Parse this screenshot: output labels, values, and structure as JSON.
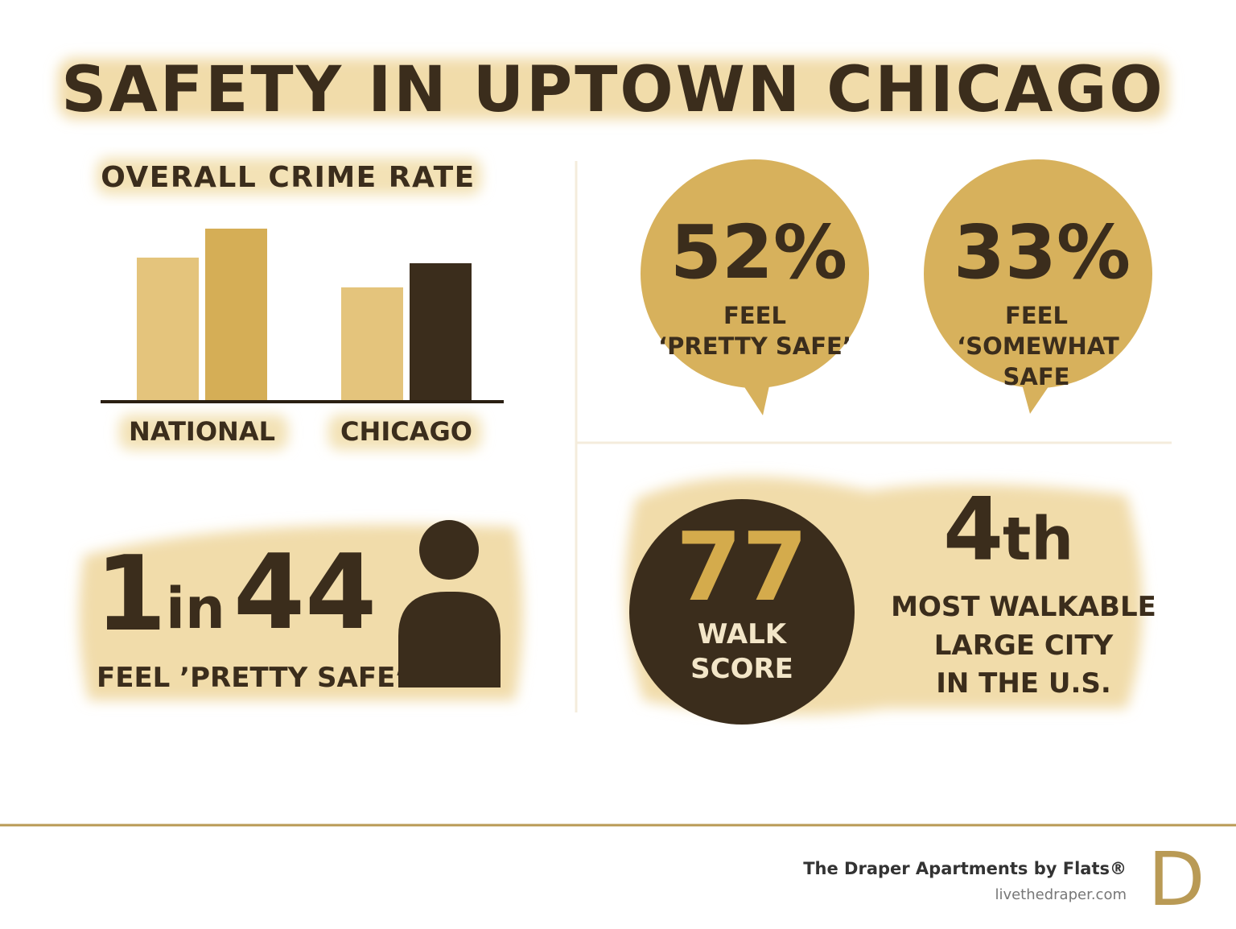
{
  "title": "SAFETY IN UPTOWN CHICAGO",
  "chart_data": {
    "type": "bar",
    "title": "OVERALL CRIME RATE",
    "categories": [
      "NATIONAL",
      "CHICAGO"
    ],
    "series": [
      {
        "colors": [
          "#e4c47c",
          "#e4c47c"
        ],
        "values": [
          177,
          140
        ]
      },
      {
        "colors": [
          "#d5ae56",
          "#3b2d1c"
        ],
        "values": [
          213,
          170
        ]
      }
    ],
    "ylim": [
      0,
      230
    ]
  },
  "bubbles": [
    {
      "value": "52%",
      "label_lines": [
        "FEEL",
        "‘PRETTY SAFE’"
      ]
    },
    {
      "value": "33%",
      "label_lines": [
        "FEEL",
        "‘SOMEWHAT",
        "SAFE"
      ]
    }
  ],
  "ratio": {
    "first": "1",
    "middle": "in",
    "second": "44",
    "caption": "FEEL ’PRETTY SAFE’"
  },
  "walk_score": {
    "value": "77",
    "label_lines": [
      "WALK",
      "SCORE"
    ]
  },
  "rank": {
    "value": "4",
    "suffix": "th",
    "label_lines": [
      "MOST WALKABLE",
      "LARGE CITY",
      "IN THE U.S."
    ]
  },
  "footer": {
    "brand": "The Draper Apartments by Flats®",
    "url": "livethedraper.com",
    "logo": "D"
  }
}
